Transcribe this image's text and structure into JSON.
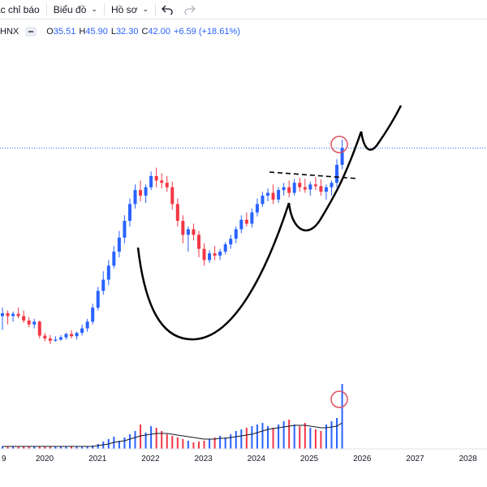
{
  "toolbar": {
    "indicators_label": "ác chỉ báo",
    "chart_label": "Biểu đồ",
    "profile_label": "Hồ sơ",
    "undo_icon": "undo-icon",
    "redo_icon": "redo-icon"
  },
  "legend": {
    "symbol": "HNX",
    "open_key": "O",
    "open": "35.51",
    "high_key": "H",
    "high": "45.90",
    "low_key": "L",
    "low": "32.30",
    "close_key": "C",
    "close": "42.00",
    "change": "+6.59 (+18.61%)"
  },
  "colors": {
    "up": "#2962ff",
    "down": "#f23645",
    "volume_ma": "#131722",
    "annotation": "#000000",
    "circle": "#e05060",
    "price_line": "#2962ff"
  },
  "chart_data": {
    "type": "candlestick",
    "interval": "monthly",
    "x_labels": [
      "9",
      "2020",
      "2021",
      "2022",
      "2023",
      "2024",
      "2025",
      "2026",
      "2027",
      "2028"
    ],
    "candles": [
      {
        "o": 240,
        "h": 255,
        "l": 215,
        "c": 245
      },
      {
        "o": 245,
        "h": 250,
        "l": 225,
        "c": 240
      },
      {
        "o": 240,
        "h": 248,
        "l": 230,
        "c": 244
      },
      {
        "o": 244,
        "h": 255,
        "l": 236,
        "c": 240
      },
      {
        "o": 240,
        "h": 250,
        "l": 228,
        "c": 232
      },
      {
        "o": 232,
        "h": 238,
        "l": 220,
        "c": 225
      },
      {
        "o": 225,
        "h": 235,
        "l": 218,
        "c": 230
      },
      {
        "o": 230,
        "h": 232,
        "l": 200,
        "c": 205
      },
      {
        "o": 205,
        "h": 210,
        "l": 195,
        "c": 200
      },
      {
        "o": 200,
        "h": 206,
        "l": 190,
        "c": 196
      },
      {
        "o": 196,
        "h": 204,
        "l": 194,
        "c": 198
      },
      {
        "o": 198,
        "h": 206,
        "l": 196,
        "c": 202
      },
      {
        "o": 202,
        "h": 210,
        "l": 198,
        "c": 208
      },
      {
        "o": 208,
        "h": 215,
        "l": 200,
        "c": 204
      },
      {
        "o": 204,
        "h": 212,
        "l": 198,
        "c": 210
      },
      {
        "o": 210,
        "h": 225,
        "l": 205,
        "c": 218
      },
      {
        "o": 218,
        "h": 235,
        "l": 212,
        "c": 230
      },
      {
        "o": 230,
        "h": 262,
        "l": 225,
        "c": 255
      },
      {
        "o": 255,
        "h": 292,
        "l": 250,
        "c": 285
      },
      {
        "o": 285,
        "h": 320,
        "l": 278,
        "c": 305
      },
      {
        "o": 305,
        "h": 340,
        "l": 295,
        "c": 330
      },
      {
        "o": 330,
        "h": 365,
        "l": 325,
        "c": 355
      },
      {
        "o": 355,
        "h": 392,
        "l": 345,
        "c": 380
      },
      {
        "o": 380,
        "h": 420,
        "l": 370,
        "c": 410
      },
      {
        "o": 410,
        "h": 450,
        "l": 400,
        "c": 440
      },
      {
        "o": 440,
        "h": 475,
        "l": 432,
        "c": 465
      },
      {
        "o": 465,
        "h": 482,
        "l": 445,
        "c": 455
      },
      {
        "o": 455,
        "h": 475,
        "l": 442,
        "c": 470
      },
      {
        "o": 470,
        "h": 498,
        "l": 465,
        "c": 490
      },
      {
        "o": 490,
        "h": 505,
        "l": 470,
        "c": 482
      },
      {
        "o": 482,
        "h": 495,
        "l": 468,
        "c": 478
      },
      {
        "o": 478,
        "h": 490,
        "l": 462,
        "c": 470
      },
      {
        "o": 470,
        "h": 480,
        "l": 430,
        "c": 440
      },
      {
        "o": 440,
        "h": 450,
        "l": 400,
        "c": 410
      },
      {
        "o": 410,
        "h": 420,
        "l": 370,
        "c": 385
      },
      {
        "o": 385,
        "h": 400,
        "l": 355,
        "c": 395
      },
      {
        "o": 395,
        "h": 405,
        "l": 375,
        "c": 385
      },
      {
        "o": 385,
        "h": 392,
        "l": 345,
        "c": 360
      },
      {
        "o": 360,
        "h": 370,
        "l": 330,
        "c": 340
      },
      {
        "o": 340,
        "h": 358,
        "l": 335,
        "c": 352
      },
      {
        "o": 352,
        "h": 365,
        "l": 340,
        "c": 348
      },
      {
        "o": 348,
        "h": 360,
        "l": 340,
        "c": 355
      },
      {
        "o": 355,
        "h": 372,
        "l": 350,
        "c": 368
      },
      {
        "o": 368,
        "h": 385,
        "l": 360,
        "c": 378
      },
      {
        "o": 378,
        "h": 400,
        "l": 370,
        "c": 395
      },
      {
        "o": 395,
        "h": 420,
        "l": 388,
        "c": 412
      },
      {
        "o": 412,
        "h": 425,
        "l": 400,
        "c": 405
      },
      {
        "o": 405,
        "h": 432,
        "l": 398,
        "c": 425
      },
      {
        "o": 425,
        "h": 450,
        "l": 418,
        "c": 440
      },
      {
        "o": 440,
        "h": 462,
        "l": 435,
        "c": 455
      },
      {
        "o": 455,
        "h": 468,
        "l": 445,
        "c": 460
      },
      {
        "o": 460,
        "h": 475,
        "l": 440,
        "c": 448
      },
      {
        "o": 448,
        "h": 470,
        "l": 442,
        "c": 465
      },
      {
        "o": 465,
        "h": 478,
        "l": 455,
        "c": 470
      },
      {
        "o": 470,
        "h": 482,
        "l": 452,
        "c": 460
      },
      {
        "o": 460,
        "h": 485,
        "l": 455,
        "c": 478
      },
      {
        "o": 478,
        "h": 487,
        "l": 462,
        "c": 470
      },
      {
        "o": 470,
        "h": 485,
        "l": 460,
        "c": 466
      },
      {
        "o": 466,
        "h": 480,
        "l": 455,
        "c": 475
      },
      {
        "o": 475,
        "h": 488,
        "l": 465,
        "c": 472
      },
      {
        "o": 472,
        "h": 484,
        "l": 455,
        "c": 462
      },
      {
        "o": 462,
        "h": 475,
        "l": 448,
        "c": 470
      },
      {
        "o": 470,
        "h": 482,
        "l": 455,
        "c": 478
      },
      {
        "o": 478,
        "h": 520,
        "l": 470,
        "c": 510
      },
      {
        "o": 510,
        "h": 555,
        "l": 502,
        "c": 540
      }
    ],
    "volume": [
      3,
      3,
      3,
      3,
      3,
      3,
      3,
      3,
      3,
      3,
      3,
      3,
      3,
      3,
      3,
      3,
      3,
      4,
      6,
      9,
      12,
      15,
      10,
      14,
      18,
      22,
      30,
      20,
      28,
      26,
      22,
      18,
      16,
      14,
      12,
      10,
      8,
      9,
      10,
      12,
      14,
      16,
      14,
      18,
      22,
      24,
      26,
      28,
      30,
      32,
      28,
      26,
      30,
      34,
      36,
      30,
      28,
      32,
      26,
      24,
      22,
      30,
      34,
      38,
      80
    ],
    "volume_ma": [
      3,
      3,
      3,
      3,
      3,
      3,
      3,
      3,
      3,
      3,
      3,
      3,
      3,
      3,
      3,
      3,
      3,
      3,
      4,
      5,
      6,
      8,
      9,
      10,
      12,
      14,
      16,
      17,
      18,
      19,
      19,
      19,
      18,
      17,
      16,
      15,
      14,
      13,
      12,
      12,
      12,
      13,
      13,
      14,
      15,
      16,
      17,
      18,
      20,
      22,
      24,
      25,
      26,
      27,
      28,
      29,
      29,
      29,
      28,
      27,
      26,
      26,
      27,
      28,
      32
    ],
    "last_price": 540
  }
}
